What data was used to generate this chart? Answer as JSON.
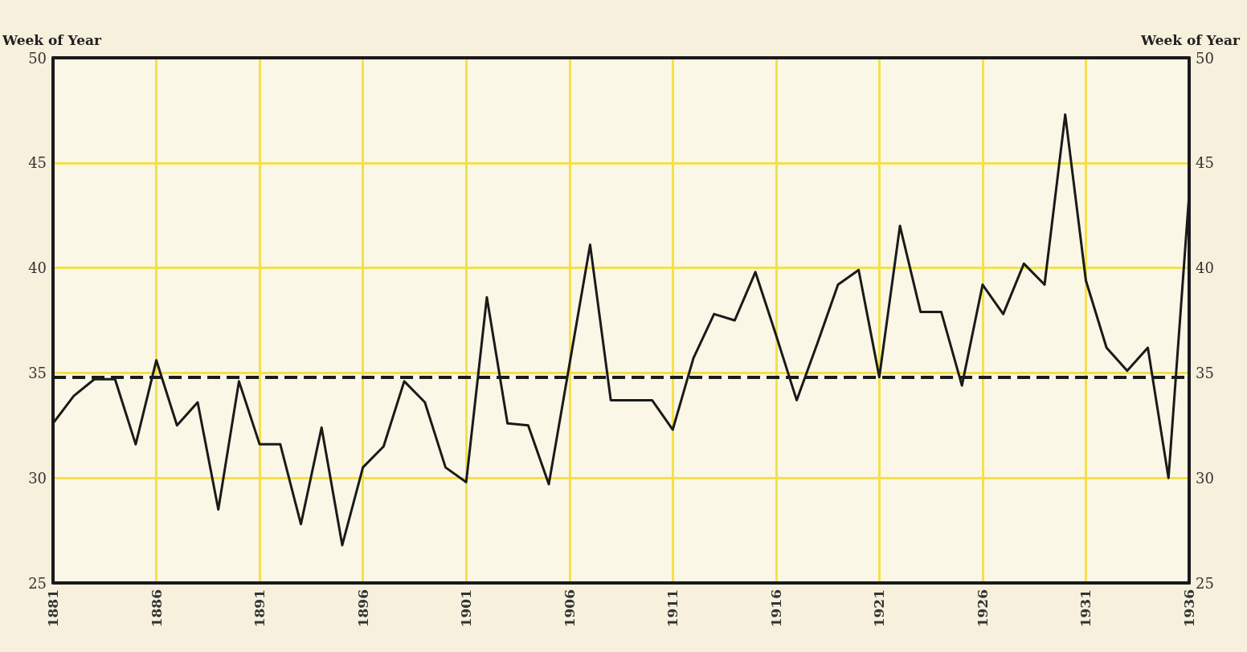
{
  "chart_data": {
    "type": "line",
    "ylabel": "Week of Year",
    "y2label": "Week of Year",
    "x": [
      1881,
      1882,
      1883,
      1884,
      1885,
      1886,
      1887,
      1888,
      1889,
      1890,
      1891,
      1892,
      1893,
      1894,
      1895,
      1896,
      1897,
      1898,
      1899,
      1900,
      1901,
      1902,
      1903,
      1904,
      1905,
      1906,
      1907,
      1908,
      1909,
      1910,
      1911,
      1912,
      1913,
      1914,
      1915,
      1916,
      1917,
      1918,
      1919,
      1920,
      1921,
      1922,
      1923,
      1924,
      1925,
      1926,
      1927,
      1928,
      1929,
      1930,
      1931,
      1932,
      1933,
      1934,
      1935,
      1936
    ],
    "series": [
      {
        "color": "#1a1a1a",
        "values": [
          32.6,
          33.9,
          34.7,
          34.7,
          31.6,
          35.6,
          32.5,
          33.6,
          28.5,
          34.6,
          31.6,
          31.6,
          27.8,
          32.4,
          26.8,
          30.5,
          31.5,
          34.6,
          33.6,
          30.5,
          29.8,
          38.6,
          32.6,
          32.5,
          29.7,
          35.4,
          41.1,
          33.7,
          33.7,
          33.7,
          32.3,
          35.7,
          37.8,
          37.5,
          39.8,
          36.8,
          33.7,
          36.4,
          39.2,
          39.9,
          34.8,
          42.0,
          37.9,
          37.9,
          34.4,
          39.2,
          37.8,
          40.2,
          39.2,
          47.3,
          39.4,
          36.2,
          35.1,
          36.2,
          30.0,
          43.5
        ]
      }
    ],
    "xlim": [
      1881,
      1936
    ],
    "xticks": [
      1881,
      1886,
      1891,
      1896,
      1901,
      1906,
      1911,
      1916,
      1921,
      1926,
      1931,
      1936
    ],
    "ylim": [
      25,
      50
    ],
    "yticks": [
      25,
      30,
      35,
      40,
      45,
      50
    ],
    "y2lim": [
      25,
      50
    ],
    "y2ticks": [
      25,
      30,
      35,
      40,
      45,
      50
    ],
    "ref_lines": [
      {
        "axis": "y",
        "value": 34.8,
        "color": "#1a1a1a",
        "line_style": "dashed"
      }
    ],
    "grid": true,
    "marker": "none",
    "line_style": "solid"
  }
}
